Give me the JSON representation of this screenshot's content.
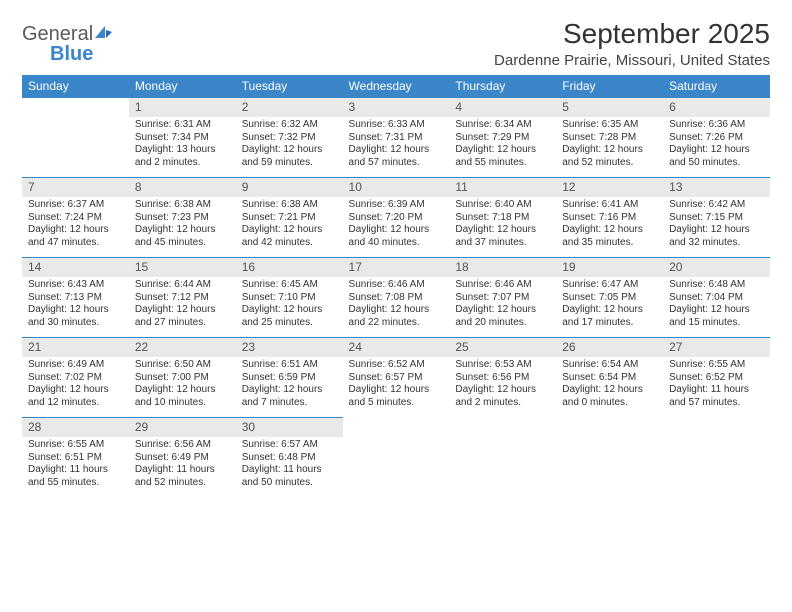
{
  "logo": {
    "general": "General",
    "blue": "Blue"
  },
  "title": "September 2025",
  "location": "Dardenne Prairie, Missouri, United States",
  "colors": {
    "accent": "#3a86c8",
    "header_bg": "#3a86c8",
    "header_text": "#ffffff",
    "daynum_bg": "#e9e9e9",
    "text": "#333333",
    "background": "#ffffff"
  },
  "dayHeaders": [
    "Sunday",
    "Monday",
    "Tuesday",
    "Wednesday",
    "Thursday",
    "Friday",
    "Saturday"
  ],
  "weeks": [
    [
      null,
      {
        "n": "1",
        "sr": "Sunrise: 6:31 AM",
        "ss": "Sunset: 7:34 PM",
        "d1": "Daylight: 13 hours",
        "d2": "and 2 minutes."
      },
      {
        "n": "2",
        "sr": "Sunrise: 6:32 AM",
        "ss": "Sunset: 7:32 PM",
        "d1": "Daylight: 12 hours",
        "d2": "and 59 minutes."
      },
      {
        "n": "3",
        "sr": "Sunrise: 6:33 AM",
        "ss": "Sunset: 7:31 PM",
        "d1": "Daylight: 12 hours",
        "d2": "and 57 minutes."
      },
      {
        "n": "4",
        "sr": "Sunrise: 6:34 AM",
        "ss": "Sunset: 7:29 PM",
        "d1": "Daylight: 12 hours",
        "d2": "and 55 minutes."
      },
      {
        "n": "5",
        "sr": "Sunrise: 6:35 AM",
        "ss": "Sunset: 7:28 PM",
        "d1": "Daylight: 12 hours",
        "d2": "and 52 minutes."
      },
      {
        "n": "6",
        "sr": "Sunrise: 6:36 AM",
        "ss": "Sunset: 7:26 PM",
        "d1": "Daylight: 12 hours",
        "d2": "and 50 minutes."
      }
    ],
    [
      {
        "n": "7",
        "sr": "Sunrise: 6:37 AM",
        "ss": "Sunset: 7:24 PM",
        "d1": "Daylight: 12 hours",
        "d2": "and 47 minutes."
      },
      {
        "n": "8",
        "sr": "Sunrise: 6:38 AM",
        "ss": "Sunset: 7:23 PM",
        "d1": "Daylight: 12 hours",
        "d2": "and 45 minutes."
      },
      {
        "n": "9",
        "sr": "Sunrise: 6:38 AM",
        "ss": "Sunset: 7:21 PM",
        "d1": "Daylight: 12 hours",
        "d2": "and 42 minutes."
      },
      {
        "n": "10",
        "sr": "Sunrise: 6:39 AM",
        "ss": "Sunset: 7:20 PM",
        "d1": "Daylight: 12 hours",
        "d2": "and 40 minutes."
      },
      {
        "n": "11",
        "sr": "Sunrise: 6:40 AM",
        "ss": "Sunset: 7:18 PM",
        "d1": "Daylight: 12 hours",
        "d2": "and 37 minutes."
      },
      {
        "n": "12",
        "sr": "Sunrise: 6:41 AM",
        "ss": "Sunset: 7:16 PM",
        "d1": "Daylight: 12 hours",
        "d2": "and 35 minutes."
      },
      {
        "n": "13",
        "sr": "Sunrise: 6:42 AM",
        "ss": "Sunset: 7:15 PM",
        "d1": "Daylight: 12 hours",
        "d2": "and 32 minutes."
      }
    ],
    [
      {
        "n": "14",
        "sr": "Sunrise: 6:43 AM",
        "ss": "Sunset: 7:13 PM",
        "d1": "Daylight: 12 hours",
        "d2": "and 30 minutes."
      },
      {
        "n": "15",
        "sr": "Sunrise: 6:44 AM",
        "ss": "Sunset: 7:12 PM",
        "d1": "Daylight: 12 hours",
        "d2": "and 27 minutes."
      },
      {
        "n": "16",
        "sr": "Sunrise: 6:45 AM",
        "ss": "Sunset: 7:10 PM",
        "d1": "Daylight: 12 hours",
        "d2": "and 25 minutes."
      },
      {
        "n": "17",
        "sr": "Sunrise: 6:46 AM",
        "ss": "Sunset: 7:08 PM",
        "d1": "Daylight: 12 hours",
        "d2": "and 22 minutes."
      },
      {
        "n": "18",
        "sr": "Sunrise: 6:46 AM",
        "ss": "Sunset: 7:07 PM",
        "d1": "Daylight: 12 hours",
        "d2": "and 20 minutes."
      },
      {
        "n": "19",
        "sr": "Sunrise: 6:47 AM",
        "ss": "Sunset: 7:05 PM",
        "d1": "Daylight: 12 hours",
        "d2": "and 17 minutes."
      },
      {
        "n": "20",
        "sr": "Sunrise: 6:48 AM",
        "ss": "Sunset: 7:04 PM",
        "d1": "Daylight: 12 hours",
        "d2": "and 15 minutes."
      }
    ],
    [
      {
        "n": "21",
        "sr": "Sunrise: 6:49 AM",
        "ss": "Sunset: 7:02 PM",
        "d1": "Daylight: 12 hours",
        "d2": "and 12 minutes."
      },
      {
        "n": "22",
        "sr": "Sunrise: 6:50 AM",
        "ss": "Sunset: 7:00 PM",
        "d1": "Daylight: 12 hours",
        "d2": "and 10 minutes."
      },
      {
        "n": "23",
        "sr": "Sunrise: 6:51 AM",
        "ss": "Sunset: 6:59 PM",
        "d1": "Daylight: 12 hours",
        "d2": "and 7 minutes."
      },
      {
        "n": "24",
        "sr": "Sunrise: 6:52 AM",
        "ss": "Sunset: 6:57 PM",
        "d1": "Daylight: 12 hours",
        "d2": "and 5 minutes."
      },
      {
        "n": "25",
        "sr": "Sunrise: 6:53 AM",
        "ss": "Sunset: 6:56 PM",
        "d1": "Daylight: 12 hours",
        "d2": "and 2 minutes."
      },
      {
        "n": "26",
        "sr": "Sunrise: 6:54 AM",
        "ss": "Sunset: 6:54 PM",
        "d1": "Daylight: 12 hours",
        "d2": "and 0 minutes."
      },
      {
        "n": "27",
        "sr": "Sunrise: 6:55 AM",
        "ss": "Sunset: 6:52 PM",
        "d1": "Daylight: 11 hours",
        "d2": "and 57 minutes."
      }
    ],
    [
      {
        "n": "28",
        "sr": "Sunrise: 6:55 AM",
        "ss": "Sunset: 6:51 PM",
        "d1": "Daylight: 11 hours",
        "d2": "and 55 minutes."
      },
      {
        "n": "29",
        "sr": "Sunrise: 6:56 AM",
        "ss": "Sunset: 6:49 PM",
        "d1": "Daylight: 11 hours",
        "d2": "and 52 minutes."
      },
      {
        "n": "30",
        "sr": "Sunrise: 6:57 AM",
        "ss": "Sunset: 6:48 PM",
        "d1": "Daylight: 11 hours",
        "d2": "and 50 minutes."
      },
      null,
      null,
      null,
      null
    ]
  ]
}
